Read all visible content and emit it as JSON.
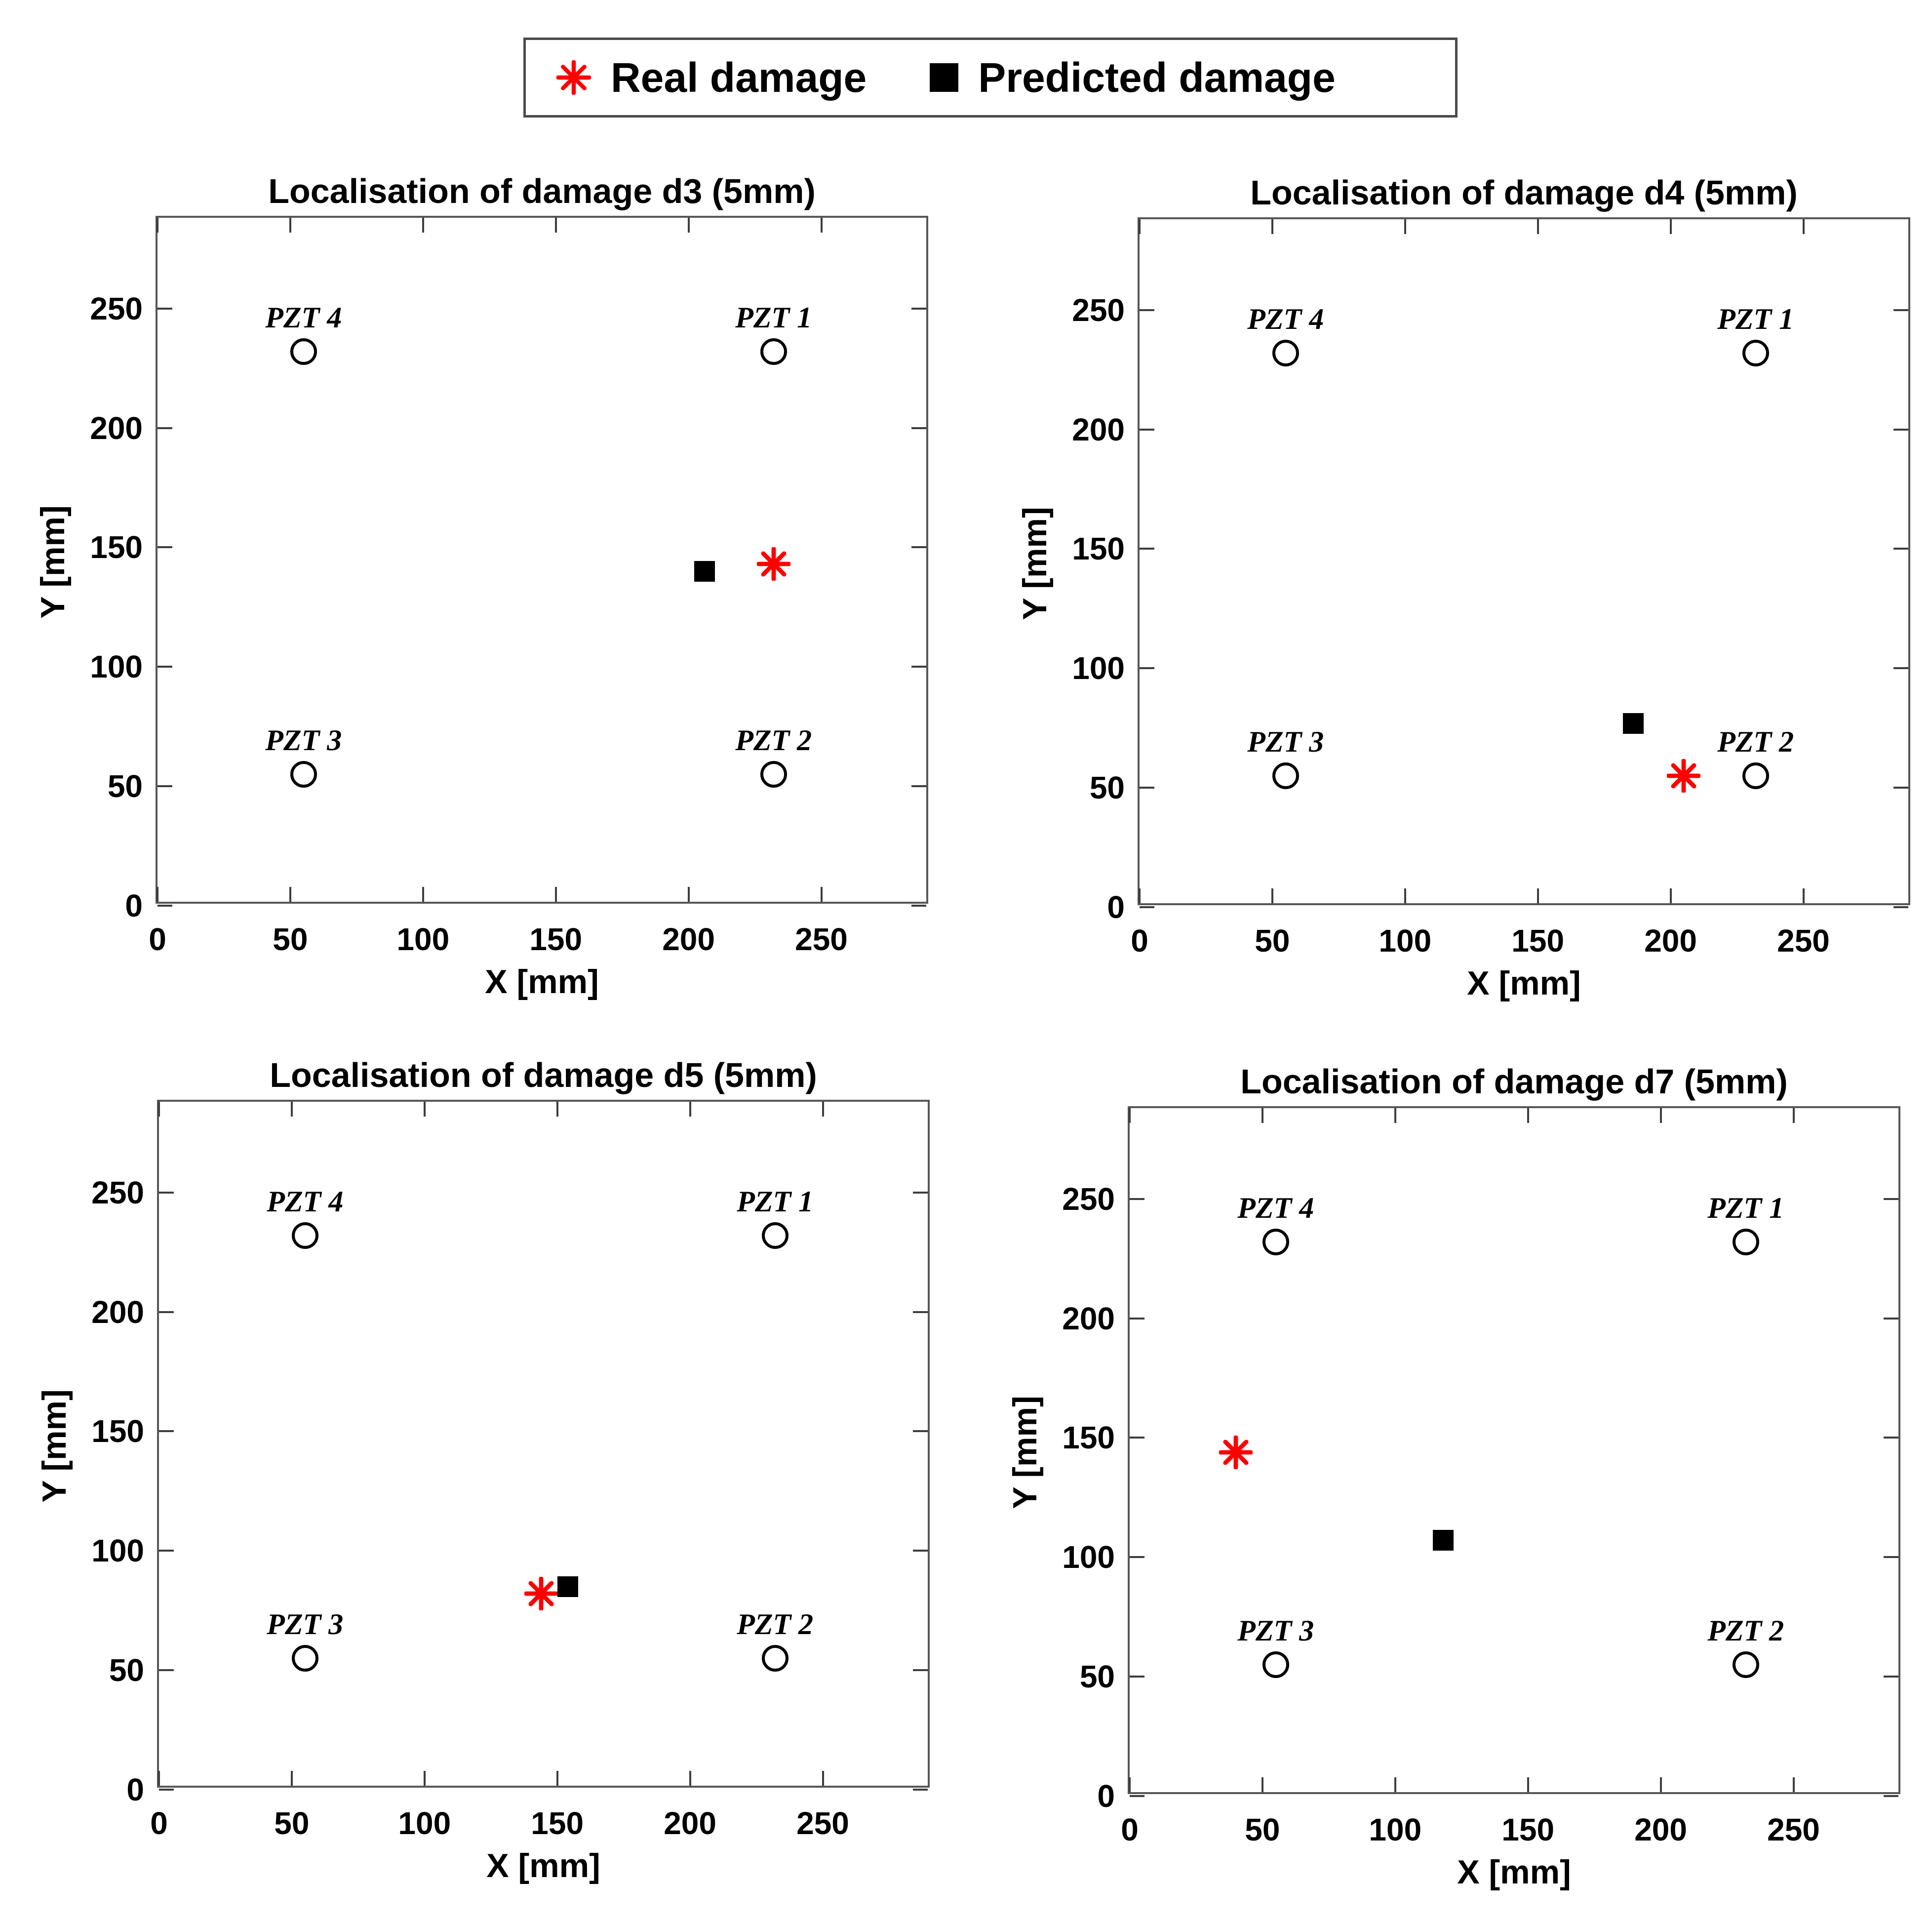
{
  "legend": {
    "items": [
      {
        "label": "Real damage",
        "marker": "asterisk",
        "color": "#ff0000"
      },
      {
        "label": "Predicted damage",
        "marker": "square",
        "color": "#000000"
      }
    ]
  },
  "chart_data": [
    {
      "type": "scatter",
      "title": "Localisation of damage d3 (5mm)",
      "xlabel": "X [mm]",
      "ylabel": "Y [mm]",
      "xlim": [
        0,
        291
      ],
      "ylim": [
        0,
        288
      ],
      "xticks": [
        0,
        50,
        100,
        150,
        200,
        250
      ],
      "yticks": [
        0,
        50,
        100,
        150,
        200,
        250
      ],
      "grid": false,
      "sensors": [
        {
          "label": "PZT 4",
          "x": 55,
          "y": 232
        },
        {
          "label": "PZT 1",
          "x": 232,
          "y": 232
        },
        {
          "label": "PZT 3",
          "x": 55,
          "y": 55
        },
        {
          "label": "PZT 2",
          "x": 232,
          "y": 55
        }
      ],
      "series": [
        {
          "name": "Real damage",
          "marker": "asterisk",
          "color": "#ff0000",
          "points": [
            {
              "x": 232,
              "y": 143
            }
          ]
        },
        {
          "name": "Predicted damage",
          "marker": "square",
          "color": "#000000",
          "points": [
            {
              "x": 206,
              "y": 140
            }
          ]
        }
      ]
    },
    {
      "type": "scatter",
      "title": "Localisation of damage d4 (5mm)",
      "xlabel": "X [mm]",
      "ylabel": "Y [mm]",
      "xlim": [
        0,
        291
      ],
      "ylim": [
        0,
        288
      ],
      "xticks": [
        0,
        50,
        100,
        150,
        200,
        250
      ],
      "yticks": [
        0,
        50,
        100,
        150,
        200,
        250
      ],
      "grid": false,
      "sensors": [
        {
          "label": "PZT 4",
          "x": 55,
          "y": 232
        },
        {
          "label": "PZT 1",
          "x": 232,
          "y": 232
        },
        {
          "label": "PZT 3",
          "x": 55,
          "y": 55
        },
        {
          "label": "PZT 2",
          "x": 232,
          "y": 55
        }
      ],
      "series": [
        {
          "name": "Real damage",
          "marker": "asterisk",
          "color": "#ff0000",
          "points": [
            {
              "x": 205,
              "y": 55
            }
          ]
        },
        {
          "name": "Predicted damage",
          "marker": "square",
          "color": "#000000",
          "points": [
            {
              "x": 186,
              "y": 77
            }
          ]
        }
      ]
    },
    {
      "type": "scatter",
      "title": "Localisation of damage d5 (5mm)",
      "xlabel": "X [mm]",
      "ylabel": "Y [mm]",
      "xlim": [
        0,
        291
      ],
      "ylim": [
        0,
        288
      ],
      "xticks": [
        0,
        50,
        100,
        150,
        200,
        250
      ],
      "yticks": [
        0,
        50,
        100,
        150,
        200,
        250
      ],
      "grid": false,
      "sensors": [
        {
          "label": "PZT 4",
          "x": 55,
          "y": 232
        },
        {
          "label": "PZT 1",
          "x": 232,
          "y": 232
        },
        {
          "label": "PZT 3",
          "x": 55,
          "y": 55
        },
        {
          "label": "PZT 2",
          "x": 232,
          "y": 55
        }
      ],
      "series": [
        {
          "name": "Real damage",
          "marker": "asterisk",
          "color": "#ff0000",
          "points": [
            {
              "x": 144,
              "y": 82
            }
          ]
        },
        {
          "name": "Predicted damage",
          "marker": "square",
          "color": "#000000",
          "points": [
            {
              "x": 154,
              "y": 85
            }
          ]
        }
      ]
    },
    {
      "type": "scatter",
      "title": "Localisation of damage d7 (5mm)",
      "xlabel": "X [mm]",
      "ylabel": "Y [mm]",
      "xlim": [
        0,
        291
      ],
      "ylim": [
        0,
        288
      ],
      "xticks": [
        0,
        50,
        100,
        150,
        200,
        250
      ],
      "yticks": [
        0,
        50,
        100,
        150,
        200,
        250
      ],
      "grid": false,
      "sensors": [
        {
          "label": "PZT 4",
          "x": 55,
          "y": 232
        },
        {
          "label": "PZT 1",
          "x": 232,
          "y": 232
        },
        {
          "label": "PZT 3",
          "x": 55,
          "y": 55
        },
        {
          "label": "PZT 2",
          "x": 232,
          "y": 55
        }
      ],
      "series": [
        {
          "name": "Real damage",
          "marker": "asterisk",
          "color": "#ff0000",
          "points": [
            {
              "x": 40,
              "y": 144
            }
          ]
        },
        {
          "name": "Predicted damage",
          "marker": "square",
          "color": "#000000",
          "points": [
            {
              "x": 118,
              "y": 107
            }
          ]
        }
      ]
    }
  ]
}
